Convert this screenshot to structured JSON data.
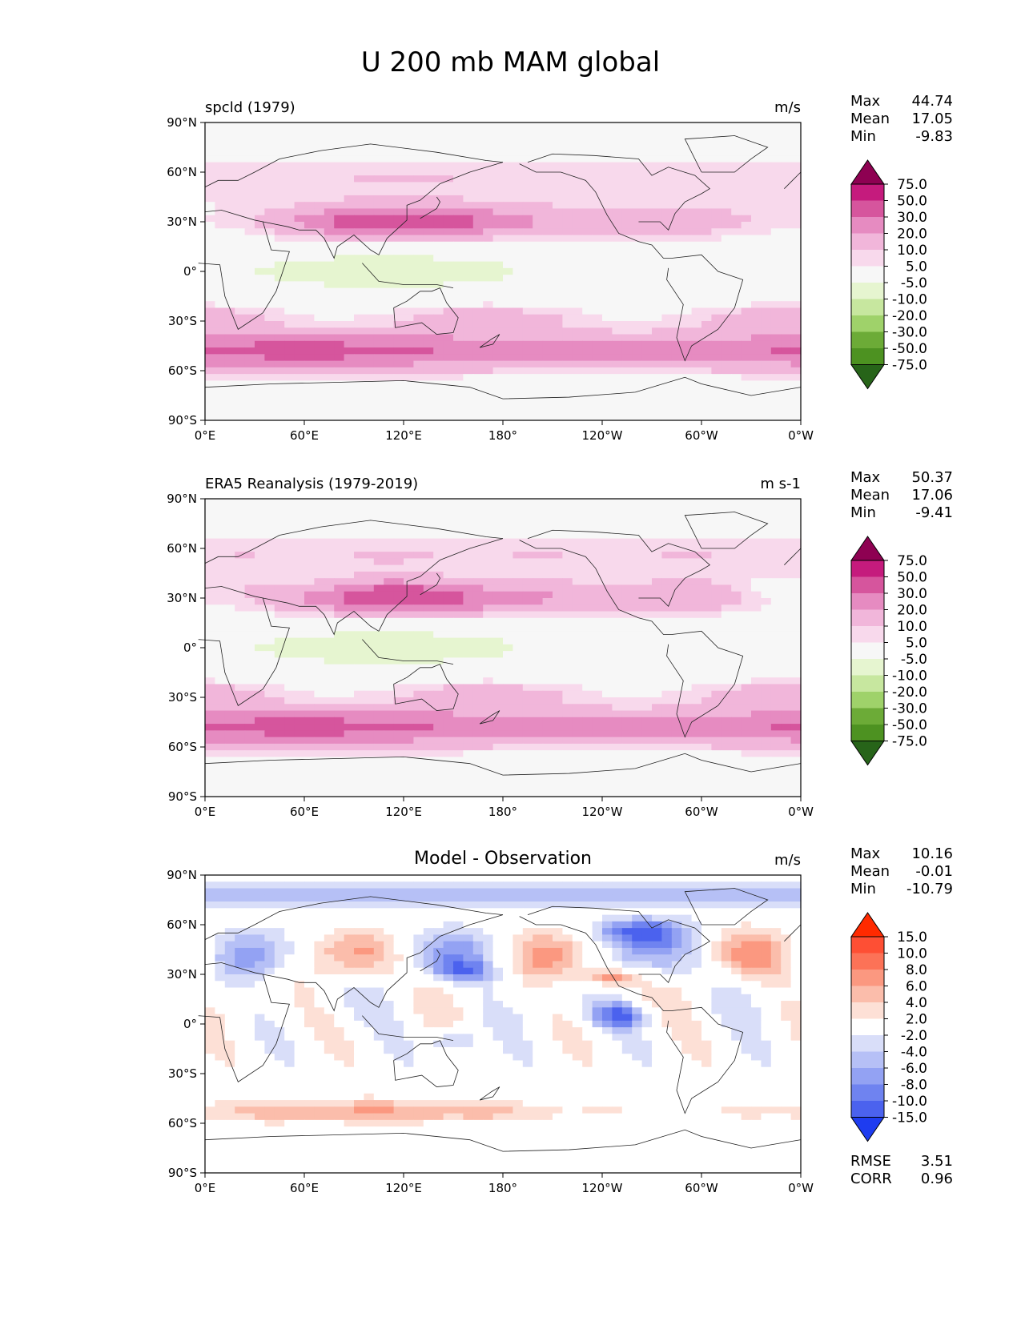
{
  "figure": {
    "title": "U 200 mb MAM global",
    "x_ticks": [
      "0°E",
      "60°E",
      "120°E",
      "180°",
      "120°W",
      "60°W",
      "0°W"
    ],
    "y_ticks": [
      "90°N",
      "60°N",
      "30°N",
      "0°",
      "30°S",
      "60°S",
      "90°S"
    ]
  },
  "panels": [
    {
      "left_title": "spcld (1979)",
      "center_title": "",
      "units": "m/s",
      "stats": [
        {
          "label": "Max",
          "value": "44.74"
        },
        {
          "label": "Mean",
          "value": "17.05"
        },
        {
          "label": "Min",
          "value": "-9.83"
        }
      ],
      "colorbar": {
        "labels": [
          "75.0",
          "50.0",
          "30.0",
          "20.0",
          "10.0",
          "5.0",
          "-5.0",
          "-10.0",
          "-20.0",
          "-30.0",
          "-50.0",
          "-75.0"
        ],
        "colors": [
          "#8e0152",
          "#c51b7d",
          "#d6559d",
          "#e68bc1",
          "#f1b6da",
          "#f8d9ec",
          "#f7f7f7",
          "#e6f5d0",
          "#c7e79f",
          "#9fd26a",
          "#6cab37",
          "#4d9221",
          "#276419"
        ]
      },
      "footer": []
    },
    {
      "left_title": "ERA5 Reanalysis (1979-2019)",
      "center_title": "",
      "units": "m s-1",
      "stats": [
        {
          "label": "Max",
          "value": "50.37"
        },
        {
          "label": "Mean",
          "value": "17.06"
        },
        {
          "label": "Min",
          "value": "-9.41"
        }
      ],
      "colorbar": {
        "labels": [
          "75.0",
          "50.0",
          "30.0",
          "20.0",
          "10.0",
          "5.0",
          "-5.0",
          "-10.0",
          "-20.0",
          "-30.0",
          "-50.0",
          "-75.0"
        ],
        "colors": [
          "#8e0152",
          "#c51b7d",
          "#d6559d",
          "#e68bc1",
          "#f1b6da",
          "#f8d9ec",
          "#f7f7f7",
          "#e6f5d0",
          "#c7e79f",
          "#9fd26a",
          "#6cab37",
          "#4d9221",
          "#276419"
        ]
      },
      "footer": []
    },
    {
      "left_title": "",
      "center_title": "Model - Observation",
      "units": "m/s",
      "stats": [
        {
          "label": "Max",
          "value": "10.16"
        },
        {
          "label": "Mean",
          "value": "-0.01"
        },
        {
          "label": "Min",
          "value": "-10.79"
        }
      ],
      "colorbar": {
        "labels": [
          "15.0",
          "10.0",
          "8.0",
          "6.0",
          "4.0",
          "2.0",
          "-2.0",
          "-4.0",
          "-6.0",
          "-8.0",
          "-10.0",
          "-15.0"
        ],
        "colors": [
          "#ff2a00",
          "#fe4f34",
          "#fc7257",
          "#fb9880",
          "#fbbdab",
          "#fde0d6",
          "#ffffff",
          "#d9def9",
          "#b6c0f6",
          "#93a2f3",
          "#6f83f0",
          "#4b62ee",
          "#1e3cf0"
        ]
      },
      "footer": [
        {
          "label": "RMSE",
          "value": "3.51"
        },
        {
          "label": "CORR",
          "value": "0.96"
        }
      ]
    }
  ],
  "chart_data": [
    {
      "type": "heatmap",
      "title": "spcld (1979)",
      "units": "m/s",
      "x_range": [
        0,
        360
      ],
      "y_range": [
        -90,
        90
      ],
      "x_tick_values": [
        0,
        60,
        120,
        180,
        240,
        300,
        360
      ],
      "y_tick_values": [
        90,
        60,
        30,
        0,
        -30,
        -60,
        -90
      ],
      "levels": [
        -75,
        -50,
        -30,
        -20,
        -10,
        -5,
        5,
        10,
        20,
        30,
        50,
        75
      ],
      "max": 44.74,
      "mean": 17.05,
      "min": -9.83
    },
    {
      "type": "heatmap",
      "title": "ERA5 Reanalysis (1979-2019)",
      "units": "m s-1",
      "x_range": [
        0,
        360
      ],
      "y_range": [
        -90,
        90
      ],
      "levels": [
        -75,
        -50,
        -30,
        -20,
        -10,
        -5,
        5,
        10,
        20,
        30,
        50,
        75
      ],
      "max": 50.37,
      "mean": 17.06,
      "min": -9.41
    },
    {
      "type": "heatmap",
      "title": "Model - Observation",
      "units": "m/s",
      "x_range": [
        0,
        360
      ],
      "y_range": [
        -90,
        90
      ],
      "levels": [
        -15,
        -10,
        -8,
        -6,
        -4,
        -2,
        2,
        4,
        6,
        8,
        10,
        15
      ],
      "max": 10.16,
      "mean": -0.01,
      "min": -10.79,
      "rmse": 3.51,
      "corr": 0.96
    }
  ]
}
